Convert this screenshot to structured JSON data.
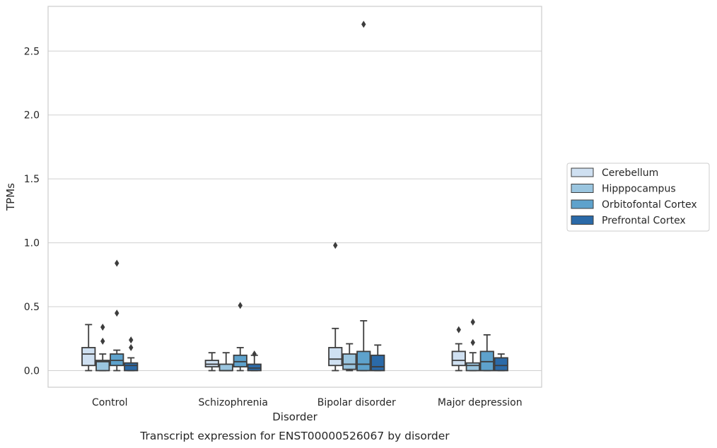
{
  "chart_data": {
    "type": "box",
    "caption": "Transcript expression for ENST00000526067 by disorder",
    "xlabel": "Disorder",
    "ylabel": "TPMs",
    "ylim": [
      -0.13,
      2.85
    ],
    "yticks": [
      0.0,
      0.5,
      1.0,
      1.5,
      2.0,
      2.5
    ],
    "ytick_labels": [
      "0.0",
      "0.5",
      "1.0",
      "1.5",
      "2.0",
      "2.5"
    ],
    "categories": [
      "Control",
      "Schizophrenia",
      "Bipolar disorder",
      "Major depression"
    ],
    "grid": "horizontal",
    "legend_position": "right",
    "series": [
      {
        "name": "Cerebellum",
        "color": "#cfe0f1",
        "boxes": [
          {
            "whislo": 0.0,
            "q1": 0.04,
            "med": 0.13,
            "q3": 0.18,
            "whishi": 0.36,
            "fliers": []
          },
          {
            "whislo": 0.0,
            "q1": 0.03,
            "med": 0.05,
            "q3": 0.08,
            "whishi": 0.14,
            "fliers": []
          },
          {
            "whislo": 0.0,
            "q1": 0.04,
            "med": 0.09,
            "q3": 0.18,
            "whishi": 0.33,
            "fliers": [
              0.98
            ]
          },
          {
            "whislo": 0.0,
            "q1": 0.04,
            "med": 0.08,
            "q3": 0.15,
            "whishi": 0.21,
            "fliers": [
              0.32
            ]
          }
        ]
      },
      {
        "name": "Hipppocampus",
        "color": "#9ac5df",
        "boxes": [
          {
            "whislo": 0.0,
            "q1": 0.0,
            "med": 0.07,
            "q3": 0.08,
            "whishi": 0.13,
            "fliers": [
              0.23,
              0.34
            ]
          },
          {
            "whislo": 0.0,
            "q1": 0.0,
            "med": 0.0,
            "q3": 0.05,
            "whishi": 0.14,
            "fliers": []
          },
          {
            "whislo": 0.0,
            "q1": 0.01,
            "med": 0.05,
            "q3": 0.13,
            "whishi": 0.21,
            "fliers": []
          },
          {
            "whislo": 0.0,
            "q1": 0.0,
            "med": 0.04,
            "q3": 0.06,
            "whishi": 0.14,
            "fliers": [
              0.22,
              0.38
            ]
          }
        ]
      },
      {
        "name": "Orbitofontal Cortex",
        "color": "#5ea2cc",
        "boxes": [
          {
            "whislo": 0.0,
            "q1": 0.04,
            "med": 0.08,
            "q3": 0.13,
            "whishi": 0.16,
            "fliers": [
              0.45,
              0.84
            ]
          },
          {
            "whislo": 0.0,
            "q1": 0.03,
            "med": 0.07,
            "q3": 0.12,
            "whishi": 0.18,
            "fliers": [
              0.51
            ]
          },
          {
            "whislo": 0.0,
            "q1": 0.0,
            "med": 0.05,
            "q3": 0.15,
            "whishi": 0.39,
            "fliers": [
              2.71
            ]
          },
          {
            "whislo": 0.0,
            "q1": 0.0,
            "med": 0.07,
            "q3": 0.15,
            "whishi": 0.28,
            "fliers": []
          }
        ]
      },
      {
        "name": "Prefrontal Cortex",
        "color": "#2b6aa8",
        "boxes": [
          {
            "whislo": 0.0,
            "q1": 0.0,
            "med": 0.04,
            "q3": 0.06,
            "whishi": 0.1,
            "fliers": [
              0.18,
              0.24
            ]
          },
          {
            "whislo": 0.0,
            "q1": 0.0,
            "med": 0.02,
            "q3": 0.05,
            "whishi": 0.12,
            "fliers": [
              0.13
            ]
          },
          {
            "whislo": 0.0,
            "q1": 0.0,
            "med": 0.03,
            "q3": 0.12,
            "whishi": 0.2,
            "fliers": []
          },
          {
            "whislo": 0.0,
            "q1": 0.0,
            "med": 0.04,
            "q3": 0.1,
            "whishi": 0.13,
            "fliers": []
          }
        ]
      }
    ]
  }
}
